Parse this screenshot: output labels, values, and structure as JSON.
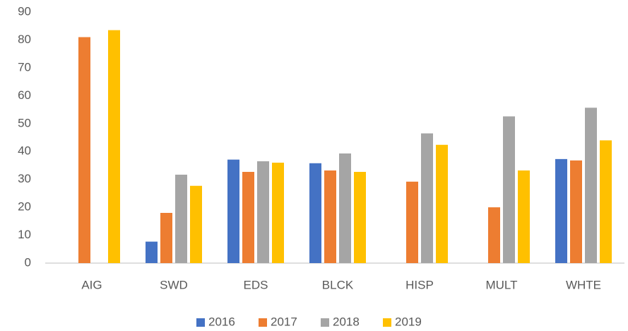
{
  "chart_data": {
    "type": "bar",
    "categories": [
      "AIG",
      "SWD",
      "EDS",
      "BLCK",
      "HISP",
      "MULT",
      "WHTE"
    ],
    "series": [
      {
        "name": "2016",
        "color": "#4472c4",
        "values": [
          null,
          7.7,
          37.1,
          35.8,
          null,
          null,
          37.3
        ]
      },
      {
        "name": "2017",
        "color": "#ed7d31",
        "values": [
          81,
          18,
          32.7,
          33.2,
          29.2,
          20,
          36.8
        ]
      },
      {
        "name": "2018",
        "color": "#a5a5a5",
        "values": [
          null,
          31.7,
          36.5,
          39.3,
          46.5,
          52.6,
          55.7
        ]
      },
      {
        "name": "2019",
        "color": "#ffc000",
        "values": [
          83.5,
          27.7,
          36,
          32.7,
          42.4,
          33.2,
          44
        ]
      }
    ],
    "ylim": [
      0,
      90
    ],
    "yticks": [
      0,
      10,
      20,
      30,
      40,
      50,
      60,
      70,
      80,
      90
    ],
    "grid": false,
    "legend": "bottom"
  }
}
